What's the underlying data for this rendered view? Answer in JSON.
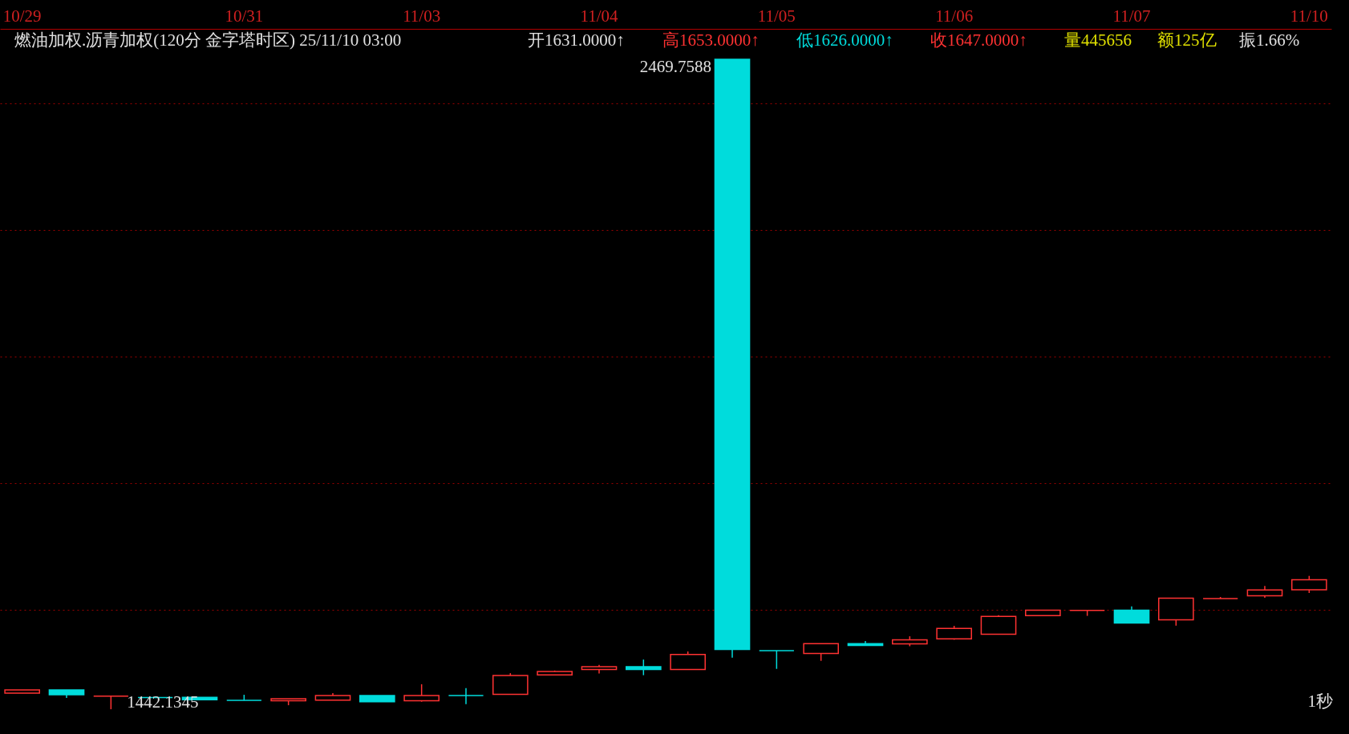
{
  "chart_data": {
    "type": "candlestick",
    "title": "燃油加权.沥青加权(120分  金字塔时区) 25/11/10 03:00",
    "categories": [
      "10/29",
      null,
      null,
      null,
      null,
      "10/31",
      null,
      null,
      null,
      "11/03",
      null,
      null,
      null,
      "11/04",
      null,
      null,
      null,
      "11/05",
      null,
      null,
      null,
      "11/06",
      null,
      null,
      null,
      "11/07",
      null,
      null,
      null,
      "11/10"
    ],
    "ohlc": [
      [
        1467.5,
        1472.6,
        1467.5,
        1472.6
      ],
      [
        1472.6,
        1472.6,
        1459.9,
        1465.0
      ],
      [
        1463.0,
        1463.0,
        1442.1345,
        1463.0
      ],
      [
        1460.6,
        1460.6,
        1460.6,
        1460.6
      ],
      [
        1461.1,
        1461.1,
        1457.3,
        1457.3
      ],
      [
        1456.1,
        1465.0,
        1456.1,
        1456.1
      ],
      [
        1455.5,
        1458.6,
        1448.5,
        1458.6
      ],
      [
        1456.6,
        1467.5,
        1456.6,
        1463.7
      ],
      [
        1463.7,
        1463.7,
        1454.1,
        1454.1
      ],
      [
        1455.5,
        1481.7,
        1454.1,
        1463.7
      ],
      [
        1463.7,
        1475.6,
        1450.2,
        1463.7
      ],
      [
        1465.6,
        1499.2,
        1465.6,
        1495.4
      ],
      [
        1496.5,
        1503.3,
        1496.5,
        1501.9
      ],
      [
        1505.0,
        1512.4,
        1498.7,
        1509.3
      ],
      [
        1509.3,
        1520.7,
        1496.0,
        1505.0
      ],
      [
        1505.0,
        1533.5,
        1505.0,
        1528.6
      ],
      [
        2469.7588,
        2469.7588,
        1523.7,
        1536.7
      ],
      [
        1534.9,
        1534.9,
        1506.0,
        1534.9
      ],
      [
        1530.4,
        1545.8,
        1518.7,
        1545.8
      ],
      [
        1545.8,
        1549.9,
        1543.0,
        1543.0
      ],
      [
        1545.4,
        1557.5,
        1541.8,
        1552.0
      ],
      [
        1553.4,
        1574.0,
        1552.0,
        1569.8
      ],
      [
        1560.7,
        1590.7,
        1560.7,
        1588.9
      ],
      [
        1590.2,
        1598.8,
        1590.2,
        1598.8
      ],
      [
        1598.4,
        1598.4,
        1589.8,
        1598.4
      ],
      [
        1598.8,
        1604.8,
        1578.4,
        1578.4
      ],
      [
        1583.5,
        1617.9,
        1574.3,
        1617.9
      ],
      [
        1617.0,
        1619.7,
        1617.0,
        1617.0
      ],
      [
        1621.6,
        1637.1,
        1618.3,
        1630.6
      ],
      [
        1631.0,
        1653.0,
        1626.0,
        1647.0
      ]
    ],
    "colors": [
      "#ff3232",
      "#00dcdc",
      "#ff3232",
      "#00dcdc",
      "#00dcdc",
      "#00dcdc",
      "#ff3232",
      "#ff3232",
      "#00dcdc",
      "#ff3232",
      "#00dcdc",
      "#ff3232",
      "#ff3232",
      "#ff3232",
      "#00dcdc",
      "#ff3232",
      "#00dcdc",
      "#00dcdc",
      "#ff3232",
      "#00dcdc",
      "#ff3232",
      "#ff3232",
      "#ff3232",
      "#ff3232",
      "#ff3232",
      "#00dcdc",
      "#ff3232",
      "#ff3232",
      "#ff3232",
      "#ff3232"
    ],
    "ylim": [
      1403,
      2518
    ],
    "yticks": [
      {
        "value": 1600,
        "label": null
      },
      {
        "value": 1800,
        "label": null
      },
      {
        "value": 2000,
        "label": null
      },
      {
        "value": 2200,
        "label": null
      },
      {
        "value": 2400,
        "label": null
      }
    ],
    "grid": "y",
    "annotations": [
      "开1631.0000↑",
      "高1653.0000↑",
      "低1626.0000↑",
      "收1647.0000↑",
      "量445656",
      "额125亿",
      "振1.66%",
      "1秒",
      "2469.7588",
      "1442.1345"
    ]
  }
}
